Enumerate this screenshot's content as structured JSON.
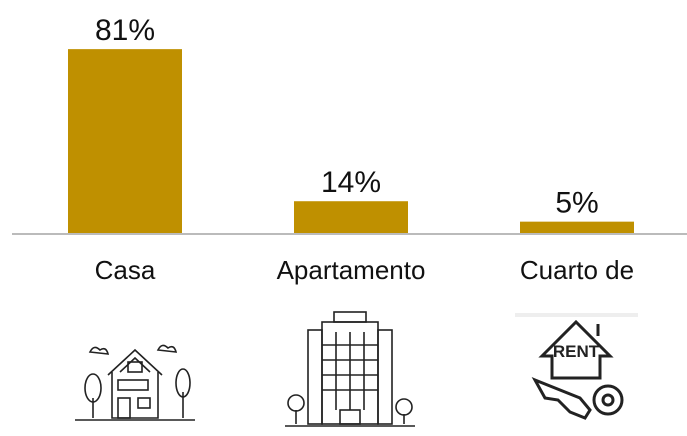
{
  "chart_data": {
    "type": "bar",
    "categories": [
      "Casa",
      "Apartamento",
      "Cuarto de"
    ],
    "values": [
      81,
      14,
      5
    ],
    "value_labels": [
      "81%",
      "14%",
      "5%"
    ],
    "color": "#bf9000"
  }
}
